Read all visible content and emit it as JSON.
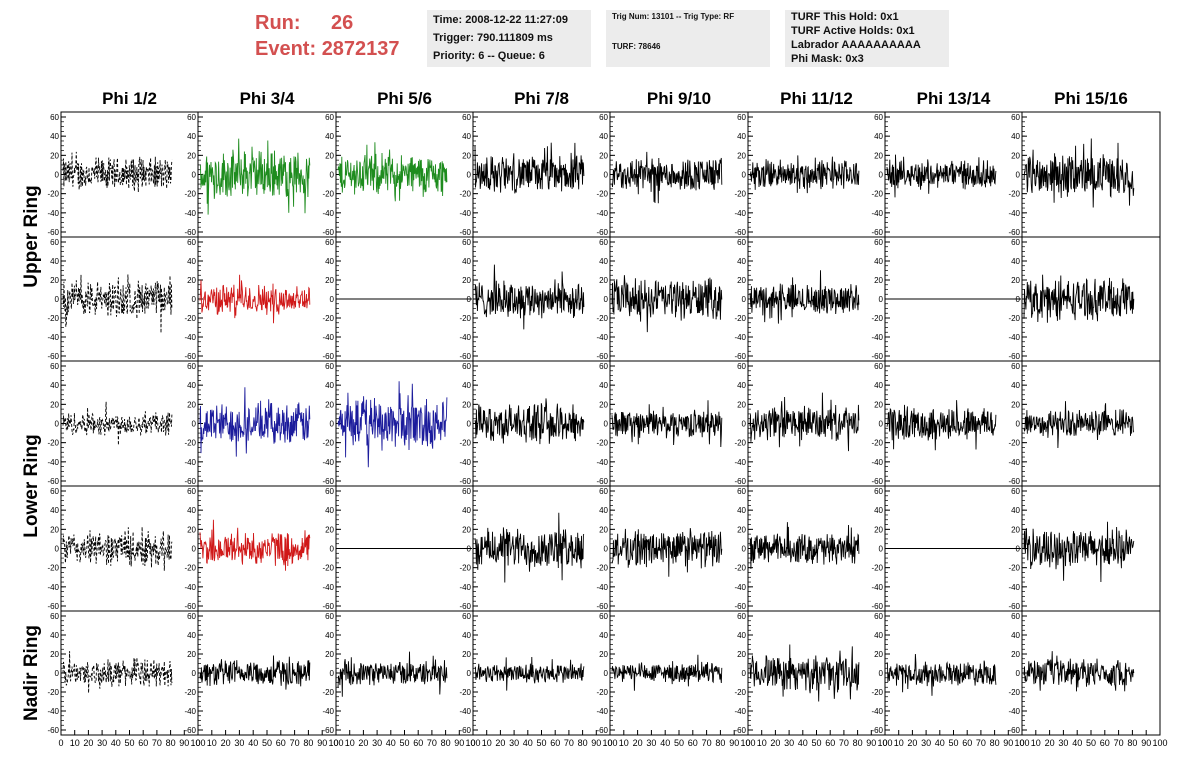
{
  "header": {
    "run_label": "Run:",
    "run_value": "26",
    "event_label": "Event:",
    "event_value": "2872137",
    "time": "Time: 2008-12-22 11:27:09",
    "trigger": "Trigger: 790.111809 ms",
    "priority": "Priority: 6 -- Queue: 6",
    "trig_num": "Trig Num: 13101 -- Trig Type: RF",
    "turf": "TURF: 78646",
    "turf_hold": "TURF This Hold: 0x1",
    "turf_active": "TURF Active Holds: 0x1",
    "labrador": "Labrador AAAAAAAAAA",
    "phi_mask": "Phi Mask: 0x3"
  },
  "chart_data": {
    "type": "line",
    "columns": [
      "Phi 1/2",
      "Phi 3/4",
      "Phi 5/6",
      "Phi 7/8",
      "Phi 9/10",
      "Phi 11/12",
      "Phi 13/14",
      "Phi 15/16"
    ],
    "ring_labels": [
      "Upper Ring",
      "Lower Ring",
      "Nadir Ring"
    ],
    "ylim": [
      -60,
      60
    ],
    "yticks": [
      -60,
      -40,
      -20,
      0,
      20,
      40,
      60
    ],
    "xlim": [
      0,
      100
    ],
    "xticks": [
      0,
      10,
      20,
      30,
      40,
      50,
      60,
      70,
      80,
      90,
      100
    ],
    "colors": {
      "black": "#000000",
      "green": "#1e8c1e",
      "red": "#d01818",
      "blue": "#1c1c9c"
    },
    "panels": [
      [
        "dashed",
        "green",
        "green",
        "black",
        "black",
        "black",
        "black",
        "black"
      ],
      [
        "dashed",
        "red",
        "flat",
        "black",
        "black",
        "black",
        "flat",
        "black"
      ],
      [
        "dashed",
        "blue",
        "blue",
        "black",
        "black",
        "black",
        "black",
        "black"
      ],
      [
        "dashed",
        "red",
        "flat",
        "black",
        "black",
        "black",
        "flat",
        "black"
      ],
      [
        "dashed",
        "black",
        "black",
        "black",
        "black",
        "black",
        "black",
        "black"
      ]
    ],
    "amplitudes": [
      [
        20,
        28,
        24,
        22,
        20,
        18,
        16,
        24
      ],
      [
        22,
        18,
        0,
        22,
        24,
        18,
        0,
        24
      ],
      [
        14,
        24,
        30,
        22,
        16,
        20,
        20,
        16
      ],
      [
        20,
        20,
        0,
        24,
        22,
        18,
        0,
        22
      ],
      [
        16,
        16,
        14,
        12,
        12,
        20,
        14,
        16
      ]
    ]
  }
}
